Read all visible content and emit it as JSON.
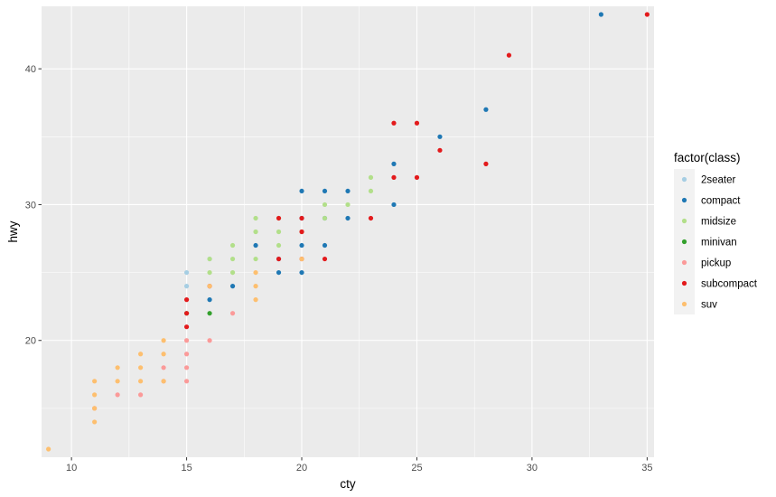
{
  "chart_data": {
    "type": "scatter",
    "xlabel": "cty",
    "ylabel": "hwy",
    "xlim": [
      8.7,
      35.3
    ],
    "ylim": [
      11.4,
      44.6
    ],
    "x_ticks": [
      10,
      15,
      20,
      25,
      30,
      35
    ],
    "y_ticks": [
      20,
      30,
      40
    ],
    "grid": true,
    "legend": {
      "title": "factor(class)",
      "position": "right",
      "entries": [
        "2seater",
        "compact",
        "midsize",
        "minivan",
        "pickup",
        "subcompact",
        "suv"
      ]
    },
    "colors": {
      "2seater": "#a6cee3",
      "compact": "#1f78b4",
      "midsize": "#b2df8a",
      "minivan": "#33a02c",
      "pickup": "#fb9a99",
      "subcompact": "#e31a1c",
      "suv": "#fdbf6f",
      "panel_bg": "#ebebeb",
      "legend_key_bg": "#f2f2f2"
    },
    "series": [
      {
        "name": "2seater",
        "points": [
          [
            15,
            25
          ],
          [
            15,
            24
          ],
          [
            16,
            26
          ]
        ]
      },
      {
        "name": "compact",
        "points": [
          [
            16,
            23
          ],
          [
            17,
            24
          ],
          [
            18,
            27
          ],
          [
            19,
            25
          ],
          [
            19,
            26
          ],
          [
            20,
            25
          ],
          [
            20,
            27
          ],
          [
            20,
            29
          ],
          [
            20,
            31
          ],
          [
            21,
            27
          ],
          [
            21,
            29
          ],
          [
            21,
            31
          ],
          [
            22,
            29
          ],
          [
            22,
            31
          ],
          [
            24,
            30
          ],
          [
            24,
            33
          ],
          [
            26,
            35
          ],
          [
            28,
            37
          ],
          [
            33,
            44
          ]
        ]
      },
      {
        "name": "midsize",
        "points": [
          [
            16,
            25
          ],
          [
            16,
            26
          ],
          [
            17,
            25
          ],
          [
            17,
            26
          ],
          [
            17,
            27
          ],
          [
            18,
            26
          ],
          [
            18,
            28
          ],
          [
            18,
            29
          ],
          [
            19,
            27
          ],
          [
            19,
            28
          ],
          [
            19,
            29
          ],
          [
            20,
            28
          ],
          [
            21,
            29
          ],
          [
            21,
            30
          ],
          [
            22,
            30
          ],
          [
            23,
            31
          ],
          [
            23,
            32
          ]
        ]
      },
      {
        "name": "minivan",
        "points": [
          [
            16,
            22
          ],
          [
            15,
            22
          ]
        ]
      },
      {
        "name": "pickup",
        "points": [
          [
            11,
            15
          ],
          [
            12,
            16
          ],
          [
            13,
            16
          ],
          [
            14,
            18
          ],
          [
            14,
            17
          ],
          [
            15,
            17
          ],
          [
            15,
            18
          ],
          [
            15,
            19
          ],
          [
            15,
            20
          ],
          [
            16,
            20
          ],
          [
            17,
            22
          ]
        ]
      },
      {
        "name": "subcompact",
        "points": [
          [
            15,
            21
          ],
          [
            15,
            22
          ],
          [
            15,
            23
          ],
          [
            16,
            24
          ],
          [
            19,
            26
          ],
          [
            19,
            29
          ],
          [
            20,
            26
          ],
          [
            20,
            28
          ],
          [
            20,
            29
          ],
          [
            21,
            26
          ],
          [
            23,
            29
          ],
          [
            24,
            32
          ],
          [
            24,
            36
          ],
          [
            25,
            32
          ],
          [
            25,
            36
          ],
          [
            26,
            34
          ],
          [
            28,
            33
          ],
          [
            29,
            41
          ],
          [
            35,
            44
          ]
        ]
      },
      {
        "name": "suv",
        "points": [
          [
            9,
            12
          ],
          [
            11,
            14
          ],
          [
            11,
            15
          ],
          [
            11,
            16
          ],
          [
            11,
            17
          ],
          [
            12,
            17
          ],
          [
            12,
            18
          ],
          [
            13,
            17
          ],
          [
            13,
            18
          ],
          [
            13,
            19
          ],
          [
            14,
            17
          ],
          [
            14,
            19
          ],
          [
            14,
            20
          ],
          [
            16,
            24
          ],
          [
            18,
            23
          ],
          [
            18,
            24
          ],
          [
            18,
            25
          ],
          [
            20,
            26
          ]
        ]
      }
    ]
  }
}
